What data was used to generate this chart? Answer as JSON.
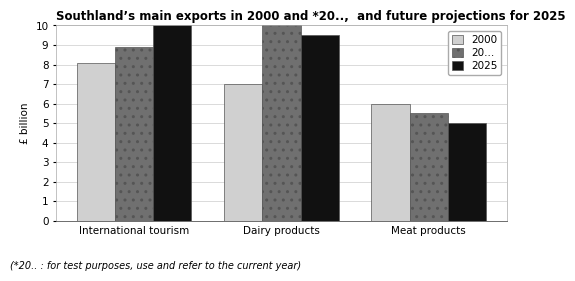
{
  "title": "Southland’s main exports in 2000 and *20..,  and future projections for 2025",
  "footnote": "(*20.. : for test purposes, use and refer to the current year)",
  "ylabel": "£ billion",
  "categories": [
    "International tourism",
    "Dairy products",
    "Meat products"
  ],
  "series": {
    "2000": [
      8.1,
      7.0,
      6.0
    ],
    "20...": [
      8.9,
      10.0,
      5.5
    ],
    "2025": [
      10.0,
      9.5,
      5.0
    ]
  },
  "legend_labels": [
    "2000",
    "20...",
    "2025"
  ],
  "bar_colors": [
    "#d0d0d0",
    "#707070",
    "#111111"
  ],
  "bar_hatches": [
    "",
    "..",
    ""
  ],
  "ylim": [
    0,
    10
  ],
  "yticks": [
    0,
    1,
    2,
    3,
    4,
    5,
    6,
    7,
    8,
    9,
    10
  ],
  "background_color": "#ffffff",
  "title_fontsize": 8.5,
  "axis_fontsize": 7.5,
  "footnote_fontsize": 7.0
}
